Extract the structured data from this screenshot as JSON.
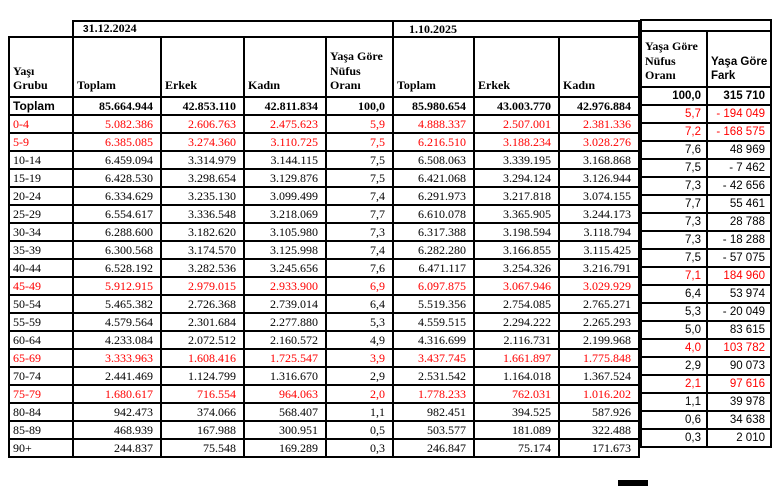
{
  "colors": {
    "highlight": "#ff0000",
    "text": "#000000",
    "border": "#000000",
    "background": "#ffffff"
  },
  "period_2024": {
    "prefix": "3",
    "label": "1.12.2024"
  },
  "period_2025": {
    "label": "1.10.2025"
  },
  "headers": {
    "age_group": "Yaşı Grubu",
    "total": "Toplam",
    "male": "Erkek",
    "female": "Kadın",
    "ratio": "Yaşa Göre Nüfus Oranı",
    "diff": "Yaşa Göre Fark"
  },
  "rows": [
    {
      "label": "Toplam",
      "bold": true,
      "red": false,
      "cells": [
        "85.664.944",
        "42.853.110",
        "42.811.834",
        "100,0",
        "85.980.654",
        "43.003.770",
        "42.976.884"
      ],
      "ratio": "100,0",
      "diff": "315 710"
    },
    {
      "label": "0-4",
      "bold": false,
      "red": true,
      "cells": [
        "5.082.386",
        "2.606.763",
        "2.475.623",
        "5,9",
        "4.888.337",
        "2.507.001",
        "2.381.336"
      ],
      "ratio": "5,7",
      "diff": "- 194 049"
    },
    {
      "label": "5-9",
      "bold": false,
      "red": true,
      "cells": [
        "6.385.085",
        "3.274.360",
        "3.110.725",
        "7,5",
        "6.216.510",
        "3.188.234",
        "3.028.276"
      ],
      "ratio": "7,2",
      "diff": "- 168 575"
    },
    {
      "label": "10-14",
      "bold": false,
      "red": false,
      "cells": [
        "6.459.094",
        "3.314.979",
        "3.144.115",
        "7,5",
        "6.508.063",
        "3.339.195",
        "3.168.868"
      ],
      "ratio": "7,6",
      "diff": "48 969"
    },
    {
      "label": "15-19",
      "bold": false,
      "red": false,
      "cells": [
        "6.428.530",
        "3.298.654",
        "3.129.876",
        "7,5",
        "6.421.068",
        "3.294.124",
        "3.126.944"
      ],
      "ratio": "7,5",
      "diff": "- 7 462"
    },
    {
      "label": "20-24",
      "bold": false,
      "red": false,
      "cells": [
        "6.334.629",
        "3.235.130",
        "3.099.499",
        "7,4",
        "6.291.973",
        "3.217.818",
        "3.074.155"
      ],
      "ratio": "7,3",
      "diff": "- 42 656"
    },
    {
      "label": "25-29",
      "bold": false,
      "red": false,
      "cells": [
        "6.554.617",
        "3.336.548",
        "3.218.069",
        "7,7",
        "6.610.078",
        "3.365.905",
        "3.244.173"
      ],
      "ratio": "7,7",
      "diff": "55 461"
    },
    {
      "label": "30-34",
      "bold": false,
      "red": false,
      "cells": [
        "6.288.600",
        "3.182.620",
        "3.105.980",
        "7,3",
        "6.317.388",
        "3.198.594",
        "3.118.794"
      ],
      "ratio": "7,3",
      "diff": "28 788"
    },
    {
      "label": "35-39",
      "bold": false,
      "red": false,
      "cells": [
        "6.300.568",
        "3.174.570",
        "3.125.998",
        "7,4",
        "6.282.280",
        "3.166.855",
        "3.115.425"
      ],
      "ratio": "7,3",
      "diff": "- 18 288"
    },
    {
      "label": "40-44",
      "bold": false,
      "red": false,
      "cells": [
        "6.528.192",
        "3.282.536",
        "3.245.656",
        "7,6",
        "6.471.117",
        "3.254.326",
        "3.216.791"
      ],
      "ratio": "7,5",
      "diff": "- 57 075"
    },
    {
      "label": "45-49",
      "bold": false,
      "red": true,
      "cells": [
        "5.912.915",
        "2.979.015",
        "2.933.900",
        "6,9",
        "6.097.875",
        "3.067.946",
        "3.029.929"
      ],
      "ratio": "7,1",
      "diff": "184 960"
    },
    {
      "label": "50-54",
      "bold": false,
      "red": false,
      "cells": [
        "5.465.382",
        "2.726.368",
        "2.739.014",
        "6,4",
        "5.519.356",
        "2.754.085",
        "2.765.271"
      ],
      "ratio": "6,4",
      "diff": "53 974"
    },
    {
      "label": "55-59",
      "bold": false,
      "red": false,
      "cells": [
        "4.579.564",
        "2.301.684",
        "2.277.880",
        "5,3",
        "4.559.515",
        "2.294.222",
        "2.265.293"
      ],
      "ratio": "5,3",
      "diff": "- 20 049"
    },
    {
      "label": "60-64",
      "bold": false,
      "red": false,
      "cells": [
        "4.233.084",
        "2.072.512",
        "2.160.572",
        "4,9",
        "4.316.699",
        "2.116.731",
        "2.199.968"
      ],
      "ratio": "5,0",
      "diff": "83 615"
    },
    {
      "label": "65-69",
      "bold": false,
      "red": true,
      "cells": [
        "3.333.963",
        "1.608.416",
        "1.725.547",
        "3,9",
        "3.437.745",
        "1.661.897",
        "1.775.848"
      ],
      "ratio": "4,0",
      "diff": "103 782"
    },
    {
      "label": "70-74",
      "bold": false,
      "red": false,
      "cells": [
        "2.441.469",
        "1.124.799",
        "1.316.670",
        "2,9",
        "2.531.542",
        "1.164.018",
        "1.367.524"
      ],
      "ratio": "2,9",
      "diff": "90 073"
    },
    {
      "label": "75-79",
      "bold": false,
      "red": true,
      "cells": [
        "1.680.617",
        "716.554",
        "964.063",
        "2,0",
        "1.778.233",
        "762.031",
        "1.016.202"
      ],
      "ratio": "2,1",
      "diff": "97 616"
    },
    {
      "label": "80-84",
      "bold": false,
      "red": false,
      "cells": [
        "942.473",
        "374.066",
        "568.407",
        "1,1",
        "982.451",
        "394.525",
        "587.926"
      ],
      "ratio": "1,1",
      "diff": "39 978"
    },
    {
      "label": "85-89",
      "bold": false,
      "red": false,
      "cells": [
        "468.939",
        "167.988",
        "300.951",
        "0,5",
        "503.577",
        "181.089",
        "322.488"
      ],
      "ratio": "0,6",
      "diff": "34 638"
    },
    {
      "label": "90+",
      "bold": false,
      "red": false,
      "cells": [
        "244.837",
        "75.548",
        "169.289",
        "0,3",
        "246.847",
        "75.174",
        "171.673"
      ],
      "ratio": "0,3",
      "diff": "2 010"
    }
  ]
}
